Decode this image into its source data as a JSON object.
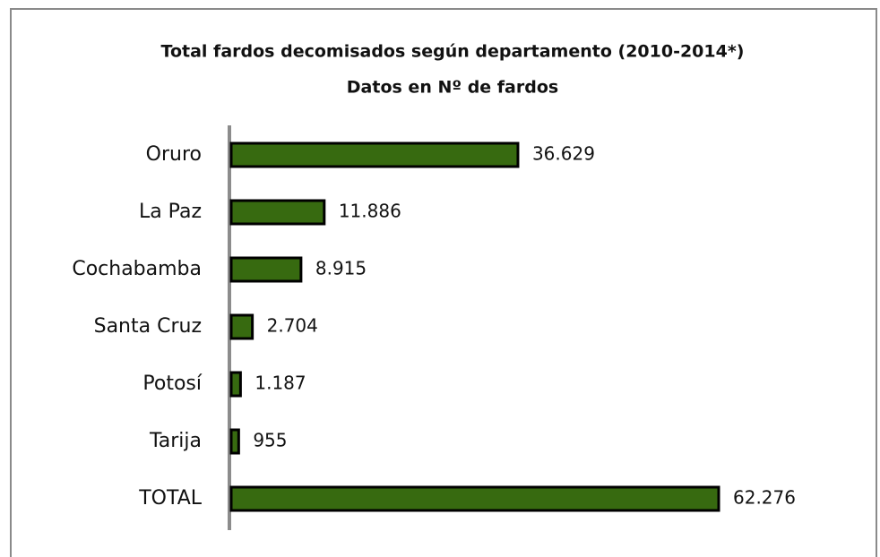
{
  "chart_data": {
    "type": "barh",
    "title": "Total fardos decomisados según departamento (2010-2014*)",
    "subtitle": "Datos en Nº de fardos",
    "categories": [
      "Oruro",
      "La Paz",
      "Cochabamba",
      "Santa Cruz",
      "Potosí",
      "Tarija",
      "TOTAL"
    ],
    "values": [
      36629,
      11886,
      8915,
      2704,
      1187,
      955,
      62276
    ],
    "value_labels": [
      "36.629",
      "11.886",
      "8.915",
      "2.704",
      "1.187",
      "955",
      "62.276"
    ],
    "color": "#376a10"
  }
}
